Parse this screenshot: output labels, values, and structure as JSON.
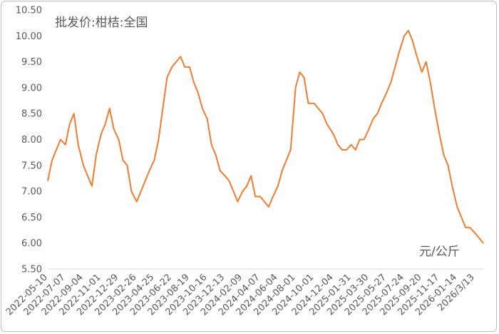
{
  "chart_data": {
    "type": "line",
    "title": "批发价:柑桔:全国",
    "unit_label": "元/公斤",
    "ylim": [
      5.5,
      10.5
    ],
    "yticks": [
      "5.50",
      "6.00",
      "6.50",
      "7.00",
      "7.50",
      "8.00",
      "8.50",
      "9.00",
      "9.50",
      "10.00",
      "10.50"
    ],
    "grid": false,
    "legend": "none",
    "line_color": "#ED7D31",
    "x_tick_labels": [
      "2022-05-10",
      "2022-07-07",
      "2022-09-04",
      "2022-11-01",
      "2022-12-29",
      "2023-02-26",
      "2023-04-25",
      "2023-06-22",
      "2023-08-19",
      "2023-10-16",
      "2023-12-13",
      "2024-02-09",
      "2024-04-07",
      "2024-06-04",
      "2024-08-01",
      "2024-10-01",
      "2024-12-04",
      "2025-01-31",
      "2025-03-30",
      "2025-05-27",
      "2025-07-24",
      "2025-09-20",
      "2025-11-17",
      "2026-01-14",
      "2026/3/13"
    ],
    "series": [
      {
        "x": [
          "2022-05-10",
          "2022-05-24",
          "2022-06-07",
          "2022-06-21",
          "2022-07-07",
          "2022-07-21",
          "2022-08-04",
          "2022-08-18",
          "2022-09-04",
          "2022-09-18",
          "2022-10-02",
          "2022-10-16",
          "2022-11-01",
          "2022-11-15",
          "2022-11-29",
          "2022-12-13",
          "2022-12-29",
          "2023-01-12",
          "2023-01-26",
          "2023-02-09",
          "2023-02-26",
          "2023-03-12",
          "2023-03-26",
          "2023-04-09",
          "2023-04-25",
          "2023-05-09",
          "2023-05-23",
          "2023-06-06",
          "2023-06-22",
          "2023-07-06",
          "2023-07-20",
          "2023-08-03",
          "2023-08-19",
          "2023-09-02",
          "2023-09-16",
          "2023-09-30",
          "2023-10-16",
          "2023-10-30",
          "2023-11-13",
          "2023-11-27",
          "2023-12-13",
          "2023-12-27",
          "2024-01-10",
          "2024-01-24",
          "2024-02-09",
          "2024-02-23",
          "2024-03-08",
          "2024-03-22",
          "2024-04-07",
          "2024-04-21",
          "2024-05-05",
          "2024-05-19",
          "2024-06-04",
          "2024-06-18",
          "2024-07-02",
          "2024-07-16",
          "2024-08-01",
          "2024-08-15",
          "2024-08-29",
          "2024-09-12",
          "2024-10-01",
          "2024-10-15",
          "2024-10-29",
          "2024-11-12",
          "2024-12-04",
          "2024-12-18",
          "2025-01-01",
          "2025-01-15",
          "2025-01-31",
          "2025-02-14",
          "2025-02-28",
          "2025-03-14",
          "2025-03-30",
          "2025-04-13",
          "2025-04-27",
          "2025-05-11",
          "2025-05-27",
          "2025-06-10",
          "2025-06-24",
          "2025-07-08",
          "2025-07-24",
          "2025-08-07",
          "2025-08-21",
          "2025-09-04",
          "2025-09-20",
          "2025-10-04",
          "2025-10-18",
          "2025-11-01",
          "2025-11-17",
          "2025-12-01",
          "2025-12-15",
          "2025-12-29",
          "2026-01-14",
          "2026-01-28",
          "2026-02-11",
          "2026-02-25",
          "2026-03-13",
          "2026-03-27",
          "2026-04-10"
        ],
        "values": [
          7.2,
          7.6,
          7.8,
          8.0,
          7.9,
          8.3,
          8.5,
          7.9,
          7.5,
          7.3,
          7.1,
          7.7,
          8.1,
          8.3,
          8.6,
          8.2,
          8.0,
          7.6,
          7.5,
          7.0,
          6.8,
          7.0,
          7.2,
          7.4,
          7.6,
          8.0,
          8.6,
          9.2,
          9.4,
          9.5,
          9.6,
          9.4,
          9.4,
          9.1,
          8.9,
          8.6,
          8.4,
          7.9,
          7.7,
          7.4,
          7.3,
          7.2,
          7.0,
          6.8,
          7.0,
          7.1,
          7.3,
          6.9,
          6.9,
          6.8,
          6.7,
          6.9,
          7.1,
          7.4,
          7.6,
          7.8,
          9.0,
          9.3,
          9.2,
          8.7,
          8.7,
          8.6,
          8.5,
          8.3,
          8.1,
          7.9,
          7.8,
          7.8,
          7.9,
          7.8,
          8.0,
          8.0,
          8.2,
          8.4,
          8.5,
          8.7,
          8.9,
          9.1,
          9.4,
          9.7,
          10.0,
          10.1,
          9.9,
          9.6,
          9.3,
          9.5,
          9.1,
          8.6,
          8.1,
          7.7,
          7.5,
          7.1,
          6.7,
          6.5,
          6.3,
          6.3,
          6.2,
          6.1,
          6.0
        ]
      }
    ]
  }
}
